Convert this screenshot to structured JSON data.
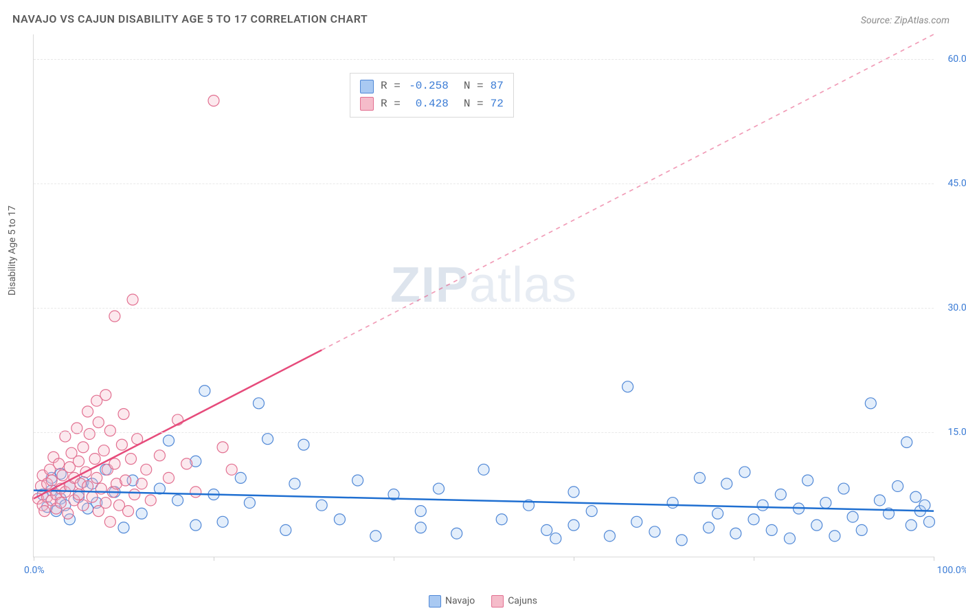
{
  "title": "NAVAJO VS CAJUN DISABILITY AGE 5 TO 17 CORRELATION CHART",
  "source_label": "Source: ZipAtlas.com",
  "y_axis_title": "Disability Age 5 to 17",
  "watermark_a": "ZIP",
  "watermark_b": "atlas",
  "chart": {
    "type": "scatter",
    "xlim": [
      0,
      100
    ],
    "ylim": [
      0,
      63
    ],
    "x_ticks": [
      0,
      20,
      40,
      60,
      80,
      100
    ],
    "x_label_min": "0.0%",
    "x_label_max": "100.0%",
    "y_gridlines": [
      {
        "value": 15,
        "label": "15.0%"
      },
      {
        "value": 30,
        "label": "30.0%"
      },
      {
        "value": 45,
        "label": "45.0%"
      },
      {
        "value": 60,
        "label": "60.0%"
      }
    ],
    "background_color": "#ffffff",
    "grid_color": "#e8e8e8",
    "axis_color": "#d9d9d9",
    "tick_label_color": "#3a7bd5",
    "title_color": "#5a5a5a",
    "title_fontsize": 16,
    "axis_label_fontsize": 14,
    "marker_radius": 8,
    "marker_stroke_width": 1.2,
    "marker_fill_opacity": 0.32,
    "series": [
      {
        "name": "Navajo",
        "R": "-0.258",
        "N": "87",
        "fill": "#a9c9f2",
        "stroke": "#4f87d6",
        "trend": {
          "color": "#1f6fd1",
          "width": 2.5,
          "y_at_x0": 8.0,
          "y_at_x100": 5.5,
          "solid_until_x": 100
        },
        "points": [
          [
            1,
            7.5
          ],
          [
            1.5,
            6
          ],
          [
            2,
            8
          ],
          [
            2,
            9.5
          ],
          [
            2.5,
            5.5
          ],
          [
            3,
            7
          ],
          [
            3,
            10
          ],
          [
            3.5,
            6.2
          ],
          [
            4,
            8.5
          ],
          [
            4,
            4.5
          ],
          [
            5,
            7.2
          ],
          [
            5.5,
            9
          ],
          [
            6,
            5.8
          ],
          [
            6.5,
            8.8
          ],
          [
            7,
            6.5
          ],
          [
            8,
            10.5
          ],
          [
            9,
            7.8
          ],
          [
            10,
            3.5
          ],
          [
            11,
            9.2
          ],
          [
            12,
            5.2
          ],
          [
            14,
            8.2
          ],
          [
            15,
            14
          ],
          [
            16,
            6.8
          ],
          [
            18,
            11.5
          ],
          [
            18,
            3.8
          ],
          [
            19,
            20
          ],
          [
            20,
            7.5
          ],
          [
            21,
            4.2
          ],
          [
            23,
            9.5
          ],
          [
            24,
            6.5
          ],
          [
            25,
            18.5
          ],
          [
            26,
            14.2
          ],
          [
            28,
            3.2
          ],
          [
            29,
            8.8
          ],
          [
            30,
            13.5
          ],
          [
            32,
            6.2
          ],
          [
            34,
            4.5
          ],
          [
            36,
            9.2
          ],
          [
            38,
            2.5
          ],
          [
            40,
            7.5
          ],
          [
            43,
            5.5
          ],
          [
            43,
            3.5
          ],
          [
            45,
            8.2
          ],
          [
            47,
            2.8
          ],
          [
            50,
            10.5
          ],
          [
            52,
            4.5
          ],
          [
            55,
            6.2
          ],
          [
            57,
            3.2
          ],
          [
            58,
            2.2
          ],
          [
            60,
            7.8
          ],
          [
            60,
            3.8
          ],
          [
            62,
            5.5
          ],
          [
            64,
            2.5
          ],
          [
            66,
            20.5
          ],
          [
            67,
            4.2
          ],
          [
            69,
            3.0
          ],
          [
            71,
            6.5
          ],
          [
            72,
            2.0
          ],
          [
            74,
            9.5
          ],
          [
            75,
            3.5
          ],
          [
            76,
            5.2
          ],
          [
            77,
            8.8
          ],
          [
            78,
            2.8
          ],
          [
            79,
            10.2
          ],
          [
            80,
            4.5
          ],
          [
            81,
            6.2
          ],
          [
            82,
            3.2
          ],
          [
            83,
            7.5
          ],
          [
            84,
            2.2
          ],
          [
            85,
            5.8
          ],
          [
            86,
            9.2
          ],
          [
            87,
            3.8
          ],
          [
            88,
            6.5
          ],
          [
            89,
            2.5
          ],
          [
            90,
            8.2
          ],
          [
            91,
            4.8
          ],
          [
            92,
            3.2
          ],
          [
            93,
            18.5
          ],
          [
            94,
            6.8
          ],
          [
            95,
            5.2
          ],
          [
            96,
            8.5
          ],
          [
            97,
            13.8
          ],
          [
            97.5,
            3.8
          ],
          [
            98,
            7.2
          ],
          [
            98.5,
            5.5
          ],
          [
            99,
            6.2
          ],
          [
            99.5,
            4.2
          ]
        ]
      },
      {
        "name": "Cajuns",
        "R": "0.428",
        "N": "72",
        "fill": "#f5bcca",
        "stroke": "#e26f90",
        "trend": {
          "color": "#e64b7b",
          "width": 2.5,
          "y_at_x0": 7.0,
          "y_at_x100": 63.0,
          "solid_until_x": 32
        },
        "points": [
          [
            0.5,
            7
          ],
          [
            0.8,
            8.5
          ],
          [
            1,
            6.2
          ],
          [
            1,
            9.8
          ],
          [
            1.2,
            5.5
          ],
          [
            1.5,
            8.8
          ],
          [
            1.5,
            7.2
          ],
          [
            1.8,
            10.5
          ],
          [
            2,
            6.8
          ],
          [
            2,
            9.2
          ],
          [
            2.2,
            12
          ],
          [
            2.5,
            7.5
          ],
          [
            2.5,
            5.8
          ],
          [
            2.8,
            11.2
          ],
          [
            3,
            8.2
          ],
          [
            3,
            6.5
          ],
          [
            3.2,
            9.8
          ],
          [
            3.5,
            14.5
          ],
          [
            3.5,
            7.8
          ],
          [
            3.8,
            5.2
          ],
          [
            4,
            10.8
          ],
          [
            4,
            8.5
          ],
          [
            4.2,
            12.5
          ],
          [
            4.5,
            6.8
          ],
          [
            4.5,
            9.5
          ],
          [
            4.8,
            15.5
          ],
          [
            5,
            7.5
          ],
          [
            5,
            11.5
          ],
          [
            5.2,
            8.8
          ],
          [
            5.5,
            13.2
          ],
          [
            5.5,
            6.2
          ],
          [
            5.8,
            10.2
          ],
          [
            6,
            17.5
          ],
          [
            6,
            8.5
          ],
          [
            6.2,
            14.8
          ],
          [
            6.5,
            7.2
          ],
          [
            6.8,
            11.8
          ],
          [
            7,
            18.8
          ],
          [
            7,
            9.5
          ],
          [
            7.2,
            5.5
          ],
          [
            7.2,
            16.2
          ],
          [
            7.5,
            8.2
          ],
          [
            7.8,
            12.8
          ],
          [
            8,
            6.5
          ],
          [
            8,
            19.5
          ],
          [
            8.2,
            10.5
          ],
          [
            8.5,
            15.2
          ],
          [
            8.5,
            4.2
          ],
          [
            8.8,
            7.8
          ],
          [
            9,
            29
          ],
          [
            9,
            11.2
          ],
          [
            9.2,
            8.8
          ],
          [
            9.5,
            6.2
          ],
          [
            9.8,
            13.5
          ],
          [
            10,
            17.2
          ],
          [
            10.2,
            9.2
          ],
          [
            10.5,
            5.5
          ],
          [
            10.8,
            11.8
          ],
          [
            11,
            31
          ],
          [
            11.2,
            7.5
          ],
          [
            11.5,
            14.2
          ],
          [
            12,
            8.8
          ],
          [
            12.5,
            10.5
          ],
          [
            13,
            6.8
          ],
          [
            14,
            12.2
          ],
          [
            15,
            9.5
          ],
          [
            16,
            16.5
          ],
          [
            17,
            11.2
          ],
          [
            18,
            7.8
          ],
          [
            20,
            55
          ],
          [
            21,
            13.2
          ],
          [
            22,
            10.5
          ]
        ]
      }
    ]
  },
  "legend_bottom": [
    {
      "label": "Navajo",
      "fill": "#a9c9f2",
      "stroke": "#4f87d6"
    },
    {
      "label": "Cajuns",
      "fill": "#f5bcca",
      "stroke": "#e26f90"
    }
  ]
}
